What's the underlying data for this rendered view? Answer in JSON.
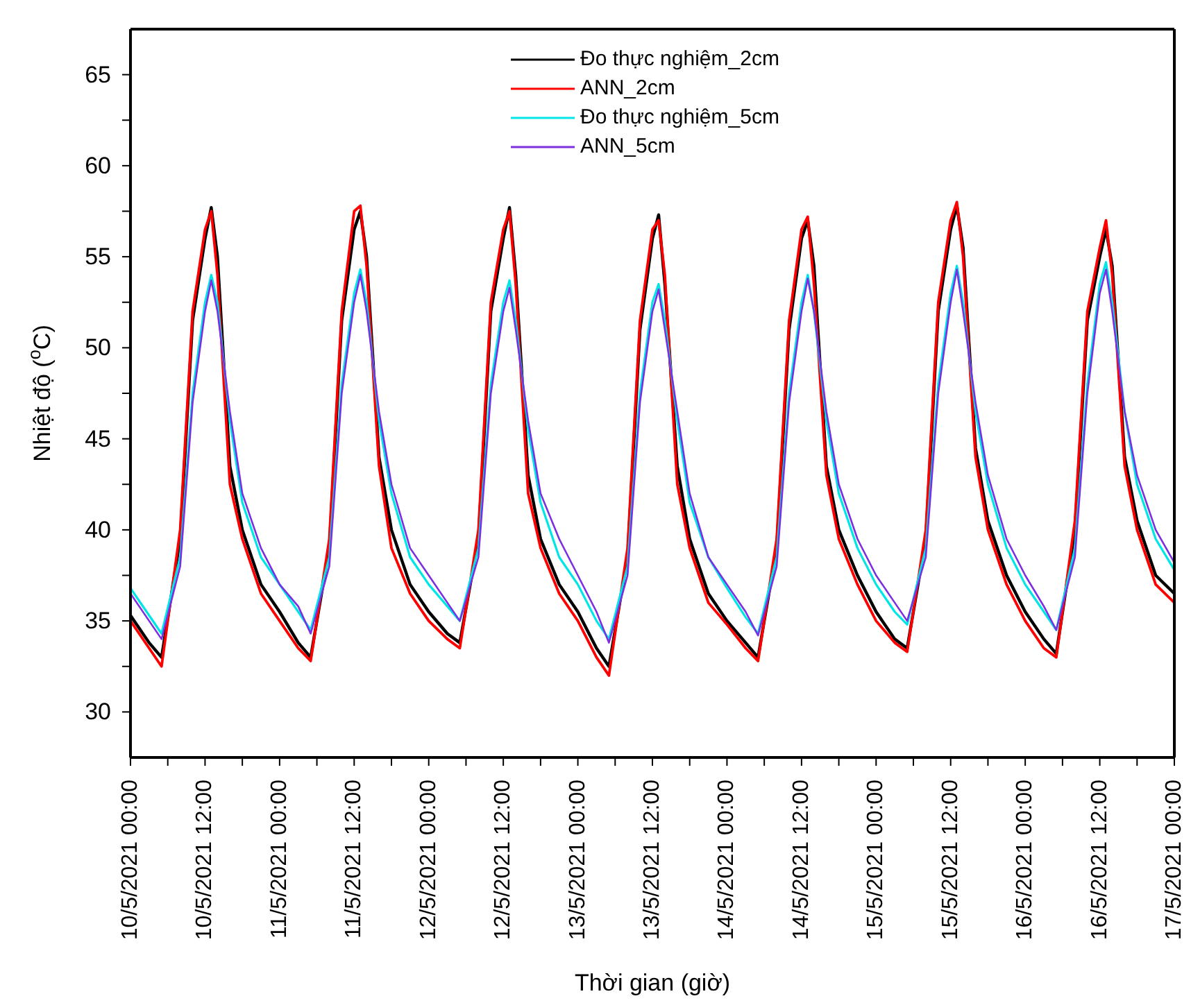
{
  "chart_data": {
    "type": "line",
    "xlabel": "Thời gian (giờ)",
    "ylabel": "Nhiệt độ ($^{o}$C)",
    "xlim": [
      "2021-05-10T00:00",
      "2021-05-17T00:00"
    ],
    "xticks": [
      {
        "value": "2021-05-10T00:00",
        "label": "10/5/2021 00:00"
      },
      {
        "value": "2021-05-10T06:00",
        "label": null
      },
      {
        "value": "2021-05-10T12:00",
        "label": "10/5/2021 12:00"
      },
      {
        "value": "2021-05-10T18:00",
        "label": null
      },
      {
        "value": "2021-05-11T00:00",
        "label": "11/5/2021 00:00"
      },
      {
        "value": "2021-05-11T06:00",
        "label": null
      },
      {
        "value": "2021-05-11T12:00",
        "label": "11/5/2021 12:00"
      },
      {
        "value": "2021-05-11T18:00",
        "label": null
      },
      {
        "value": "2021-05-12T00:00",
        "label": "12/5/2021 00:00"
      },
      {
        "value": "2021-05-12T06:00",
        "label": null
      },
      {
        "value": "2021-05-12T12:00",
        "label": "12/5/2021 12:00"
      },
      {
        "value": "2021-05-12T18:00",
        "label": null
      },
      {
        "value": "2021-05-13T00:00",
        "label": "13/5/2021 00:00"
      },
      {
        "value": "2021-05-13T06:00",
        "label": null
      },
      {
        "value": "2021-05-13T12:00",
        "label": "13/5/2021 12:00"
      },
      {
        "value": "2021-05-13T18:00",
        "label": null
      },
      {
        "value": "2021-05-14T00:00",
        "label": "14/5/2021 00:00"
      },
      {
        "value": "2021-05-14T06:00",
        "label": null
      },
      {
        "value": "2021-05-14T12:00",
        "label": "14/5/2021 12:00"
      },
      {
        "value": "2021-05-14T18:00",
        "label": null
      },
      {
        "value": "2021-05-15T00:00",
        "label": "15/5/2021 00:00"
      },
      {
        "value": "2021-05-15T06:00",
        "label": null
      },
      {
        "value": "2021-05-15T12:00",
        "label": "15/5/2021 12:00"
      },
      {
        "value": "2021-05-15T18:00",
        "label": null
      },
      {
        "value": "2021-05-16T00:00",
        "label": "16/5/2021 00:00"
      },
      {
        "value": "2021-05-16T06:00",
        "label": null
      },
      {
        "value": "2021-05-16T12:00",
        "label": "16/5/2021 12:00"
      },
      {
        "value": "2021-05-16T18:00",
        "label": null
      },
      {
        "value": "2021-05-17T00:00",
        "label": "17/5/2021 00:00"
      }
    ],
    "ylim": [
      27.5,
      67.5
    ],
    "yticks": [
      30,
      {
        "value": 32.5,
        "label": null
      },
      35,
      {
        "value": 37.5,
        "label": null
      },
      40,
      {
        "value": 42.5,
        "label": null
      },
      45,
      {
        "value": 47.5,
        "label": null
      },
      50,
      {
        "value": 52.5,
        "label": null
      },
      55,
      {
        "value": 57.5,
        "label": null
      },
      60,
      {
        "value": 62.5,
        "label": null
      },
      65
    ],
    "grid": false,
    "legend": "top",
    "marker": "none",
    "line_style": "solid",
    "x": [
      "2021-05-10T00:00",
      "2021-05-10T03:00",
      "2021-05-10T05:00",
      "2021-05-10T08:00",
      "2021-05-10T10:00",
      "2021-05-10T12:00",
      "2021-05-10T13:00",
      "2021-05-10T14:00",
      "2021-05-10T16:00",
      "2021-05-10T18:00",
      "2021-05-10T21:00",
      "2021-05-11T00:00",
      "2021-05-11T03:00",
      "2021-05-11T05:00",
      "2021-05-11T08:00",
      "2021-05-11T10:00",
      "2021-05-11T12:00",
      "2021-05-11T13:00",
      "2021-05-11T14:00",
      "2021-05-11T16:00",
      "2021-05-11T18:00",
      "2021-05-11T21:00",
      "2021-05-12T00:00",
      "2021-05-12T03:00",
      "2021-05-12T05:00",
      "2021-05-12T08:00",
      "2021-05-12T10:00",
      "2021-05-12T12:00",
      "2021-05-12T13:00",
      "2021-05-12T14:00",
      "2021-05-12T16:00",
      "2021-05-12T18:00",
      "2021-05-12T21:00",
      "2021-05-13T00:00",
      "2021-05-13T03:00",
      "2021-05-13T05:00",
      "2021-05-13T08:00",
      "2021-05-13T10:00",
      "2021-05-13T12:00",
      "2021-05-13T13:00",
      "2021-05-13T14:00",
      "2021-05-13T16:00",
      "2021-05-13T18:00",
      "2021-05-13T21:00",
      "2021-05-14T00:00",
      "2021-05-14T03:00",
      "2021-05-14T05:00",
      "2021-05-14T08:00",
      "2021-05-14T10:00",
      "2021-05-14T12:00",
      "2021-05-14T13:00",
      "2021-05-14T14:00",
      "2021-05-14T16:00",
      "2021-05-14T18:00",
      "2021-05-14T21:00",
      "2021-05-15T00:00",
      "2021-05-15T03:00",
      "2021-05-15T05:00",
      "2021-05-15T08:00",
      "2021-05-15T10:00",
      "2021-05-15T12:00",
      "2021-05-15T13:00",
      "2021-05-15T14:00",
      "2021-05-15T16:00",
      "2021-05-15T18:00",
      "2021-05-15T21:00",
      "2021-05-16T00:00",
      "2021-05-16T03:00",
      "2021-05-16T05:00",
      "2021-05-16T08:00",
      "2021-05-16T10:00",
      "2021-05-16T12:00",
      "2021-05-16T13:00",
      "2021-05-16T14:00",
      "2021-05-16T16:00",
      "2021-05-16T18:00",
      "2021-05-16T21:00",
      "2021-05-17T00:00"
    ],
    "series": [
      {
        "name": "Đo thực nghiệm_2cm",
        "color": "#000000",
        "values": [
          35.3,
          33.8,
          33.0,
          39.5,
          51.5,
          56.0,
          57.7,
          55.0,
          43.5,
          40.0,
          37.0,
          35.5,
          33.8,
          33.0,
          39.0,
          51.5,
          56.5,
          57.5,
          55.0,
          44.0,
          40.0,
          37.0,
          35.5,
          34.3,
          33.8,
          39.5,
          52.0,
          56.0,
          57.7,
          54.0,
          43.0,
          39.5,
          37.0,
          35.5,
          33.5,
          32.5,
          38.5,
          51.0,
          56.0,
          57.3,
          53.5,
          43.5,
          39.5,
          36.5,
          35.0,
          33.8,
          33.0,
          39.0,
          51.0,
          56.0,
          57.0,
          54.5,
          43.5,
          40.0,
          37.5,
          35.5,
          34.0,
          33.5,
          39.5,
          52.0,
          56.5,
          57.8,
          55.5,
          44.5,
          40.5,
          37.5,
          35.5,
          34.0,
          33.2,
          40.0,
          51.5,
          55.0,
          56.5,
          54.5,
          44.0,
          40.5,
          37.5,
          36.5
        ]
      },
      {
        "name": "ANN_2cm",
        "color": "#ff0000",
        "values": [
          35.0,
          33.5,
          32.5,
          40.0,
          52.0,
          56.5,
          57.5,
          54.0,
          42.5,
          39.5,
          36.5,
          35.0,
          33.5,
          32.8,
          39.5,
          52.0,
          57.5,
          57.8,
          54.5,
          43.5,
          39.0,
          36.5,
          35.0,
          34.0,
          33.5,
          40.0,
          52.5,
          56.5,
          57.5,
          53.5,
          42.0,
          39.0,
          36.5,
          35.0,
          33.0,
          32.0,
          39.0,
          51.5,
          56.5,
          57.0,
          54.0,
          42.5,
          39.0,
          36.0,
          34.8,
          33.5,
          32.8,
          39.5,
          51.5,
          56.5,
          57.2,
          53.5,
          43.0,
          39.5,
          37.0,
          35.0,
          33.8,
          33.3,
          40.0,
          52.5,
          57.0,
          58.0,
          55.0,
          44.0,
          40.0,
          37.0,
          35.0,
          33.5,
          33.0,
          40.5,
          52.0,
          55.5,
          57.0,
          54.0,
          43.5,
          40.0,
          37.0,
          36.0
        ]
      },
      {
        "name": "Đo thực nghiệm_5cm",
        "color": "#00e5e5",
        "values": [
          36.8,
          35.3,
          34.3,
          38.5,
          47.5,
          52.5,
          54.0,
          52.5,
          46.0,
          41.5,
          38.5,
          37.0,
          35.5,
          34.5,
          38.5,
          48.0,
          53.0,
          54.3,
          52.5,
          46.0,
          42.0,
          38.5,
          37.0,
          35.8,
          35.0,
          39.0,
          48.0,
          52.5,
          53.7,
          51.5,
          45.5,
          41.5,
          38.5,
          37.0,
          35.0,
          34.0,
          38.0,
          47.5,
          52.5,
          53.5,
          51.5,
          46.0,
          41.5,
          38.5,
          36.8,
          35.2,
          34.3,
          38.5,
          47.5,
          52.5,
          54.0,
          52.0,
          46.0,
          42.0,
          39.0,
          37.0,
          35.5,
          34.8,
          39.0,
          48.0,
          53.0,
          54.5,
          52.5,
          46.5,
          42.5,
          39.0,
          37.0,
          35.5,
          34.5,
          39.0,
          48.0,
          53.5,
          54.7,
          52.5,
          46.5,
          42.5,
          39.5,
          37.8
        ]
      },
      {
        "name": "ANN_5cm",
        "color": "#7b2fe0",
        "values": [
          36.5,
          35.0,
          34.0,
          38.0,
          47.0,
          52.0,
          53.7,
          52.0,
          46.5,
          42.0,
          39.0,
          37.0,
          35.8,
          34.3,
          38.0,
          47.5,
          52.5,
          54.0,
          52.0,
          46.5,
          42.5,
          39.0,
          37.5,
          36.0,
          35.0,
          38.5,
          47.5,
          52.0,
          53.3,
          51.0,
          46.0,
          42.0,
          39.5,
          37.5,
          35.5,
          33.8,
          37.5,
          47.0,
          52.0,
          53.2,
          51.0,
          46.5,
          42.0,
          38.5,
          37.0,
          35.5,
          34.2,
          38.0,
          47.0,
          52.0,
          53.8,
          52.0,
          46.5,
          42.5,
          39.5,
          37.5,
          36.0,
          35.0,
          38.5,
          47.5,
          52.5,
          54.3,
          52.0,
          47.0,
          43.0,
          39.5,
          37.5,
          35.8,
          34.5,
          38.5,
          47.5,
          53.0,
          54.3,
          52.0,
          46.5,
          43.0,
          40.0,
          38.2
        ]
      }
    ]
  }
}
